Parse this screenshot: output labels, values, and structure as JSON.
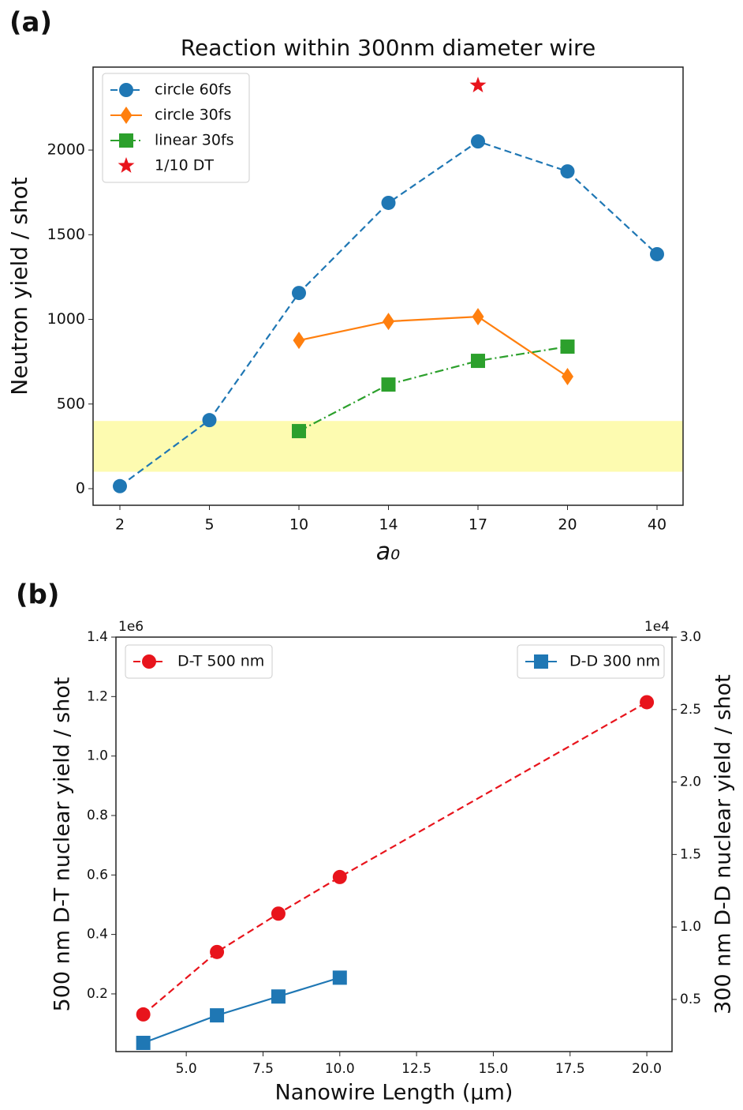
{
  "chart_data": [
    {
      "type": "line",
      "panel_label": "(a)",
      "title": "Reaction within 300nm diameter wire",
      "xlabel": "a₀",
      "ylabel": "Neutron yield / shot",
      "categories": [
        "2",
        "5",
        "10",
        "14",
        "17",
        "20",
        "40"
      ],
      "ylim": [
        -98,
        2490
      ],
      "yticks": [
        0,
        500,
        1000,
        1500,
        2000
      ],
      "legend_loc": "upper left",
      "band": {
        "ymin": 100,
        "ymax": 400,
        "color": "#fdfbb0"
      },
      "series": [
        {
          "name": "circle 60fs",
          "color": "#1f77b4",
          "marker": "circle",
          "linestyle": "dashed",
          "values": [
            15,
            405,
            1156,
            1688,
            2051,
            1874,
            1385
          ]
        },
        {
          "name": "circle 30fs",
          "color": "#ff7f0e",
          "marker": "diamond",
          "linestyle": "solid",
          "values": [
            null,
            null,
            876,
            988,
            1016,
            662,
            null
          ]
        },
        {
          "name": "linear 30fs",
          "color": "#2ca02c",
          "marker": "square",
          "linestyle": "dashdot",
          "values": [
            null,
            null,
            340,
            615,
            755,
            839,
            null
          ]
        },
        {
          "name": "1/10 DT",
          "color": "#e8141c",
          "marker": "star",
          "linestyle": "none",
          "values": [
            null,
            null,
            null,
            null,
            2382,
            null,
            null
          ]
        }
      ]
    },
    {
      "type": "line",
      "panel_label": "(b)",
      "xlabel": "Nanowire Length (μm)",
      "ylabel": "500 nm D-T nuclear yield / shot",
      "y2label": "300 nm D-D nuclear yield / shot",
      "y_offset_label": "1e6",
      "y2_offset_label": "1e4",
      "xlim": [
        2.71,
        20.82
      ],
      "xticks": [
        {
          "value": 5,
          "label": "5.0"
        },
        {
          "value": 7.5,
          "label": "7.5"
        },
        {
          "value": 10,
          "label": "10.0"
        },
        {
          "value": 12.5,
          "label": "12.5"
        },
        {
          "value": 15,
          "label": "15.0"
        },
        {
          "value": 17.5,
          "label": "17.5"
        },
        {
          "value": 20,
          "label": "20.0"
        }
      ],
      "ylim": [
        0.006,
        1.4
      ],
      "yticks": [
        0.2,
        0.4,
        0.6,
        0.8,
        {
          "value": 1,
          "label": "1.0"
        },
        1.2,
        1.4
      ],
      "y2lim": [
        0.14,
        3.0
      ],
      "y2ticks": [
        0.5,
        {
          "value": 1,
          "label": "1.0"
        },
        1.5,
        {
          "value": 2,
          "label": "2.0"
        },
        2.5,
        {
          "value": 3,
          "label": "3.0"
        }
      ],
      "legend_loc": "upper left",
      "legend2_loc": "upper right",
      "series": [
        {
          "name": "D-T 500 nm",
          "color": "#e8141c",
          "marker": "circle",
          "linestyle": "dashed",
          "x": [
            3.6,
            6,
            8,
            10,
            20
          ],
          "values": [
            0.131,
            0.341,
            0.47,
            0.593,
            1.181
          ]
        },
        {
          "name": "D-D 300 nm",
          "color": "#1f77b4",
          "marker": "square",
          "linestyle": "solid",
          "axis": "y2",
          "x": [
            3.6,
            6,
            8,
            10
          ],
          "values": [
            0.2,
            0.39,
            0.52,
            0.65
          ]
        }
      ]
    }
  ]
}
